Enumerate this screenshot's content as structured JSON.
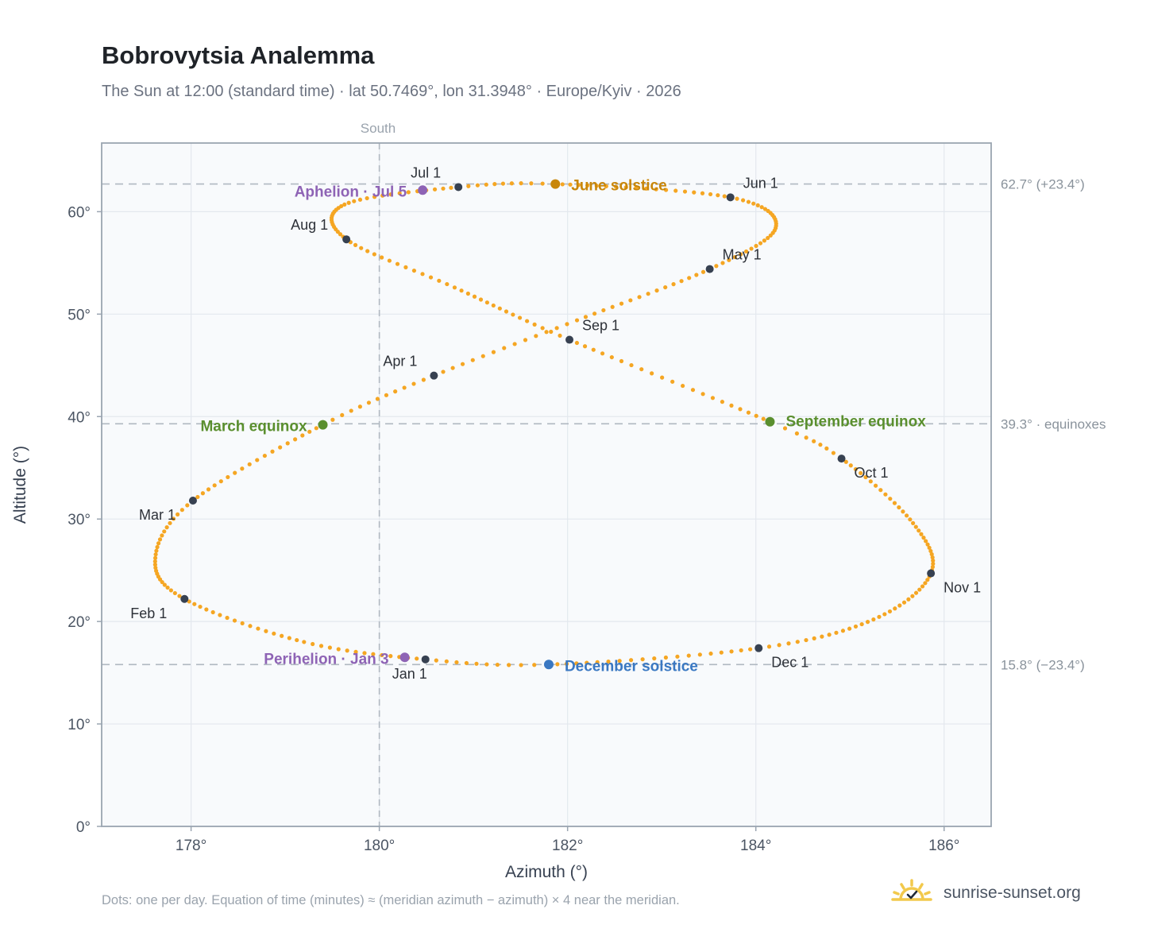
{
  "header": {
    "title": "Bobrovytsia Analemma",
    "subtitle": "The Sun at 12:00 (standard time) · lat 50.7469°, lon 31.3948° · Europe/Kyiv · 2026"
  },
  "footer": {
    "note": "Dots: one per day. Equation of time (minutes) ≈ (meridian azimuth − azimuth) × 4 near the meridian.",
    "brand": "sunrise-sunset.org"
  },
  "colors": {
    "path": "#f5a623",
    "month_marker": "#374151",
    "solstice_june": "#c8860a",
    "solstice_december": "#3a78c2",
    "equinox": "#5a8f2e",
    "apsis": "#8e63b5",
    "plot_bg": "#f8fafc",
    "grid": "#e3e8ee",
    "reference_line": "#b0b8c1"
  },
  "chart_data": {
    "type": "scatter",
    "title": "Bobrovytsia Analemma",
    "xlabel": "Azimuth (°)",
    "ylabel": "Altitude (°)",
    "xlim": [
      177.05,
      186.5
    ],
    "ylim": [
      0,
      66.7
    ],
    "x_ticks": [
      178,
      180,
      182,
      184,
      186
    ],
    "x_tick_labels": [
      "178°",
      "180°",
      "182°",
      "184°",
      "186°"
    ],
    "y_ticks": [
      0,
      10,
      20,
      30,
      40,
      50,
      60
    ],
    "y_tick_labels": [
      "0°",
      "10°",
      "20°",
      "30°",
      "40°",
      "50°",
      "60°"
    ],
    "grid": true,
    "vertical_reference": {
      "x": 180,
      "label": "South"
    },
    "horizontal_references": [
      {
        "y": 62.7,
        "label": "62.7° (+23.4°)"
      },
      {
        "y": 39.3,
        "label": "39.3° · equinoxes"
      },
      {
        "y": 15.8,
        "label": "15.8° (−23.4°)"
      }
    ],
    "month_markers": [
      {
        "label": "Jan 1",
        "x": 180.49,
        "y": 16.3
      },
      {
        "label": "Feb 1",
        "x": 177.93,
        "y": 22.2
      },
      {
        "label": "Mar 1",
        "x": 178.02,
        "y": 31.8
      },
      {
        "label": "Apr 1",
        "x": 180.58,
        "y": 44.0
      },
      {
        "label": "May 1",
        "x": 183.51,
        "y": 54.4
      },
      {
        "label": "Jun 1",
        "x": 183.73,
        "y": 61.4
      },
      {
        "label": "Jul 1",
        "x": 180.84,
        "y": 62.4
      },
      {
        "label": "Aug 1",
        "x": 179.65,
        "y": 57.3
      },
      {
        "label": "Sep 1",
        "x": 182.02,
        "y": 47.5
      },
      {
        "label": "Oct 1",
        "x": 184.91,
        "y": 35.9
      },
      {
        "label": "Nov 1",
        "x": 185.86,
        "y": 24.7
      },
      {
        "label": "Dec 1",
        "x": 184.03,
        "y": 17.4
      }
    ],
    "events": [
      {
        "label": "June solstice",
        "x": 181.87,
        "y": 62.7,
        "kind": "solstice_june"
      },
      {
        "label": "December solstice",
        "x": 181.8,
        "y": 15.8,
        "kind": "solstice_december"
      },
      {
        "label": "March equinox",
        "x": 179.4,
        "y": 39.2,
        "kind": "equinox"
      },
      {
        "label": "September equinox",
        "x": 184.15,
        "y": 39.5,
        "kind": "equinox"
      },
      {
        "label": "Aphelion · Jul 5",
        "x": 180.46,
        "y": 62.1,
        "kind": "apsis"
      },
      {
        "label": "Perihelion · Jan 3",
        "x": 180.27,
        "y": 16.5,
        "kind": "apsis"
      }
    ],
    "path_nodes": [
      {
        "day": 1,
        "x": 180.49,
        "y": 16.3
      },
      {
        "day": 15,
        "x": 179.2,
        "y": 18.0
      },
      {
        "day": 32,
        "x": 177.93,
        "y": 22.2
      },
      {
        "day": 46,
        "x": 177.62,
        "y": 26.2
      },
      {
        "day": 60,
        "x": 178.02,
        "y": 31.8
      },
      {
        "day": 79,
        "x": 179.4,
        "y": 39.2
      },
      {
        "day": 91,
        "x": 180.58,
        "y": 44.0
      },
      {
        "day": 105,
        "x": 182.1,
        "y": 49.4
      },
      {
        "day": 121,
        "x": 183.51,
        "y": 54.4
      },
      {
        "day": 136,
        "x": 184.21,
        "y": 58.4
      },
      {
        "day": 152,
        "x": 183.73,
        "y": 61.4
      },
      {
        "day": 172,
        "x": 181.87,
        "y": 62.7
      },
      {
        "day": 182,
        "x": 180.84,
        "y": 62.4
      },
      {
        "day": 197,
        "x": 179.63,
        "y": 60.7
      },
      {
        "day": 213,
        "x": 179.65,
        "y": 57.3
      },
      {
        "day": 228,
        "x": 180.8,
        "y": 52.6
      },
      {
        "day": 244,
        "x": 182.02,
        "y": 47.5
      },
      {
        "day": 266,
        "x": 184.15,
        "y": 39.5
      },
      {
        "day": 274,
        "x": 184.91,
        "y": 35.9
      },
      {
        "day": 290,
        "x": 185.67,
        "y": 29.6
      },
      {
        "day": 305,
        "x": 185.86,
        "y": 24.7
      },
      {
        "day": 320,
        "x": 185.25,
        "y": 20.2
      },
      {
        "day": 335,
        "x": 184.03,
        "y": 17.4
      },
      {
        "day": 355,
        "x": 181.8,
        "y": 15.8
      },
      {
        "day": 366,
        "x": 180.49,
        "y": 16.3
      }
    ]
  }
}
